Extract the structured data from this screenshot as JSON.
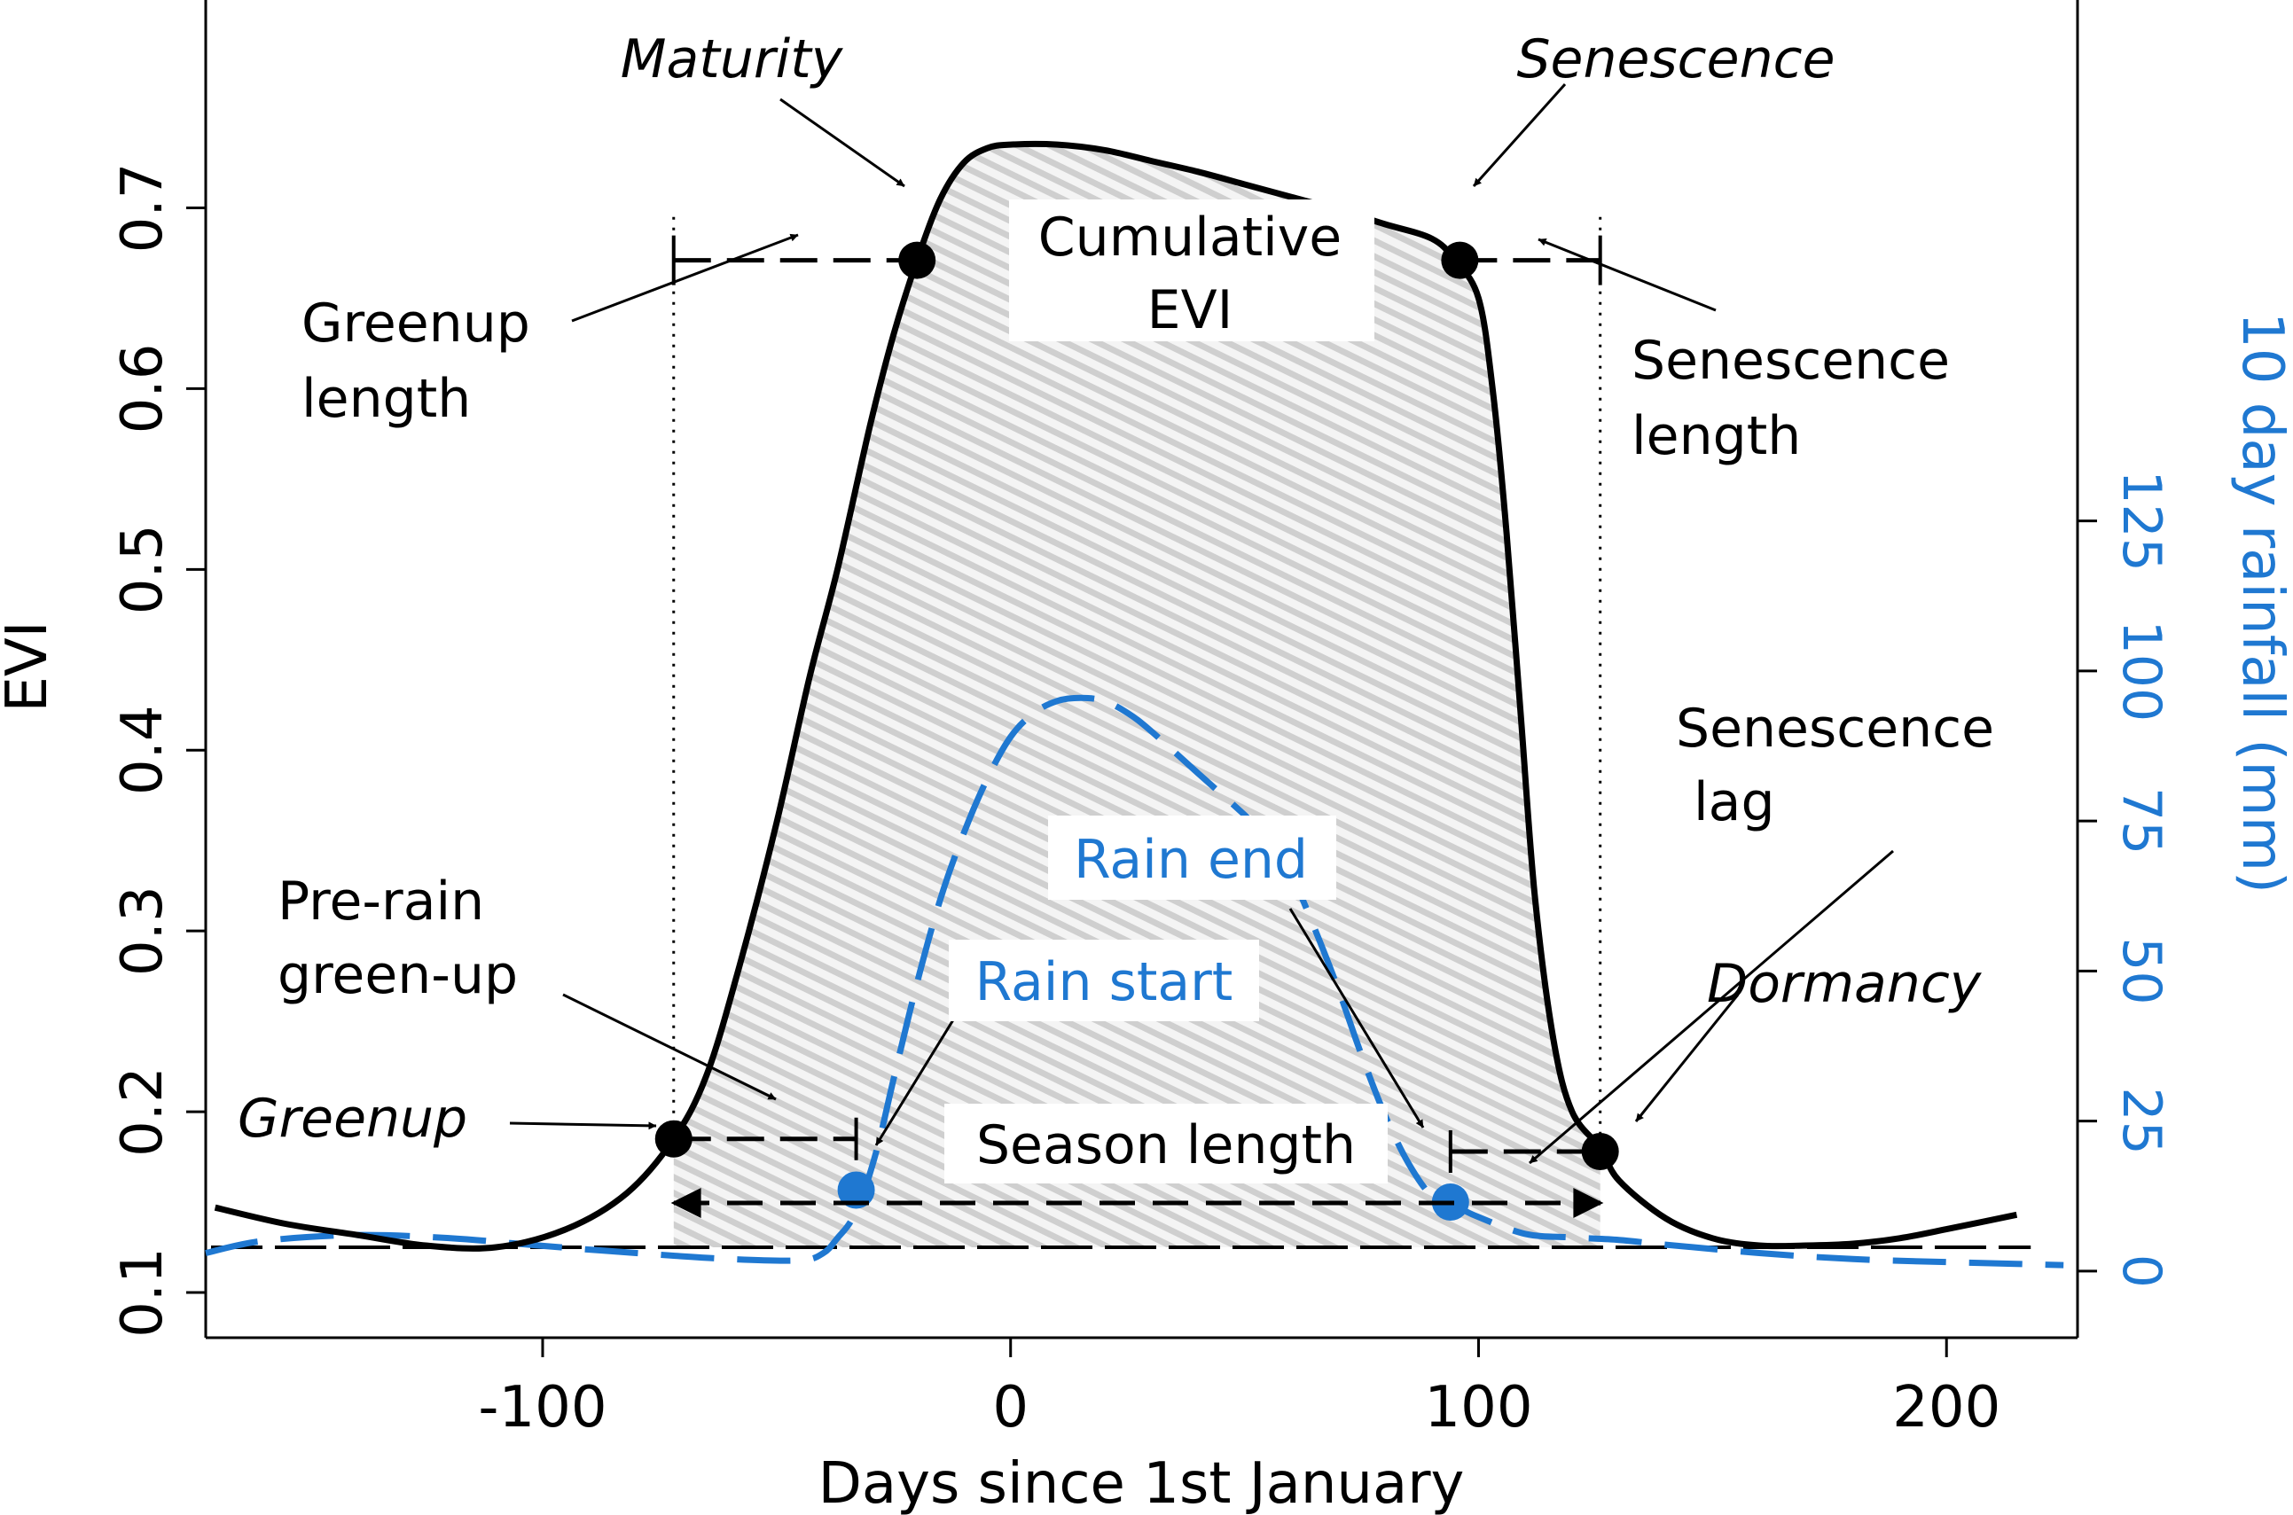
{
  "chart_data": {
    "type": "line",
    "xlabel": "Days since 1st January",
    "ylabel": "EVI",
    "ylabel_right": "10 day rainfall (mm)",
    "xlim": [
      -172,
      228
    ],
    "ylim": [
      0.075,
      0.815
    ],
    "ylim_right": [
      -11.1,
      211.8
    ],
    "x_ticks": [
      -100,
      0,
      100,
      200
    ],
    "y_ticks": [
      0.1,
      0.2,
      0.3,
      0.4,
      0.5,
      0.6,
      0.7
    ],
    "y_ticks_right": [
      0,
      25,
      50,
      75,
      100,
      125
    ],
    "colors": {
      "evi": "#000000",
      "rain": "#1f78d1",
      "fill": "#d9d9d9"
    },
    "series": [
      {
        "name": "EVI",
        "axis": "left",
        "x": [
          -170,
          -155,
          -140,
          -125,
          -110,
          -95,
          -82,
          -72,
          -65,
          -58,
          -50,
          -43,
          -37,
          -30,
          -25,
          -20,
          -15,
          -10,
          -5,
          0,
          10,
          20,
          30,
          40,
          50,
          60,
          70,
          80,
          90,
          95,
          100,
          103,
          106,
          109,
          112,
          116,
          120,
          126,
          130,
          140,
          150,
          160,
          170,
          180,
          190,
          200,
          215
        ],
        "values": [
          0.147,
          0.138,
          0.132,
          0.126,
          0.125,
          0.135,
          0.155,
          0.185,
          0.22,
          0.28,
          0.36,
          0.44,
          0.5,
          0.58,
          0.63,
          0.671,
          0.705,
          0.725,
          0.733,
          0.735,
          0.735,
          0.732,
          0.726,
          0.72,
          0.713,
          0.706,
          0.699,
          0.691,
          0.683,
          0.671,
          0.65,
          0.6,
          0.52,
          0.42,
          0.32,
          0.24,
          0.2,
          0.18,
          0.162,
          0.141,
          0.13,
          0.126,
          0.126,
          0.127,
          0.13,
          0.135,
          0.143
        ]
      },
      {
        "name": "10 day rainfall",
        "axis": "right",
        "x": [
          -172,
          -160,
          -140,
          -120,
          -100,
          -80,
          -60,
          -45,
          -40,
          -37,
          -34,
          -31,
          -28,
          -25,
          -20,
          -15,
          -10,
          -5,
          0,
          5,
          10,
          15,
          20,
          25,
          30,
          40,
          50,
          55,
          60,
          65,
          70,
          75,
          80,
          85,
          90,
          94,
          96,
          100,
          110,
          120,
          130,
          140,
          160,
          180,
          200,
          215,
          225
        ],
        "values": [
          3,
          5,
          6,
          5.5,
          4.2,
          3,
          2,
          1.8,
          3,
          5.5,
          8.5,
          14,
          22,
          32,
          48,
          62,
          73,
          82,
          89,
          93,
          95,
          95.5,
          95,
          93,
          90,
          83,
          76,
          72,
          66,
          57,
          47,
          36,
          26,
          18,
          12.5,
          11.5,
          10.5,
          9,
          6.2,
          5.6,
          5.2,
          4.4,
          3,
          2,
          1.5,
          1.2,
          1
        ]
      }
    ],
    "baseline_evi": 0.125,
    "points": [
      {
        "label": "Greenup",
        "x": -72,
        "y": 0.185,
        "axis": "left",
        "color": "black"
      },
      {
        "label": "Maturity",
        "x": -20,
        "y": 0.671,
        "axis": "left",
        "color": "black"
      },
      {
        "label": "Senescence",
        "x": 96,
        "y": 0.671,
        "axis": "left",
        "color": "black"
      },
      {
        "label": "Dormancy",
        "x": 126,
        "y": 0.178,
        "axis": "left",
        "color": "black"
      },
      {
        "label": "Rain start",
        "x": -33,
        "y": 13.5,
        "axis": "right",
        "color": "blue"
      },
      {
        "label": "Rain end",
        "x": 94,
        "y": 11.5,
        "axis": "right",
        "color": "blue"
      }
    ],
    "annotations": {
      "maturity": "Maturity",
      "senescence": "Senescence",
      "cumulative_line1": "Cumulative",
      "cumulative_line2": "EVI",
      "greenup_length_line1": "Greenup",
      "greenup_length_line2": "length",
      "senescence_length_line1": "Senescence",
      "senescence_length_line2": "length",
      "senescence_lag_line1": "Senescence",
      "senescence_lag_line2": "lag",
      "rain_end": "Rain end",
      "rain_start": "Rain start",
      "pre_rain_line1": "Pre-rain",
      "pre_rain_line2": "green-up",
      "dormancy": "Dormancy",
      "greenup": "Greenup",
      "season_length": "Season length"
    }
  }
}
